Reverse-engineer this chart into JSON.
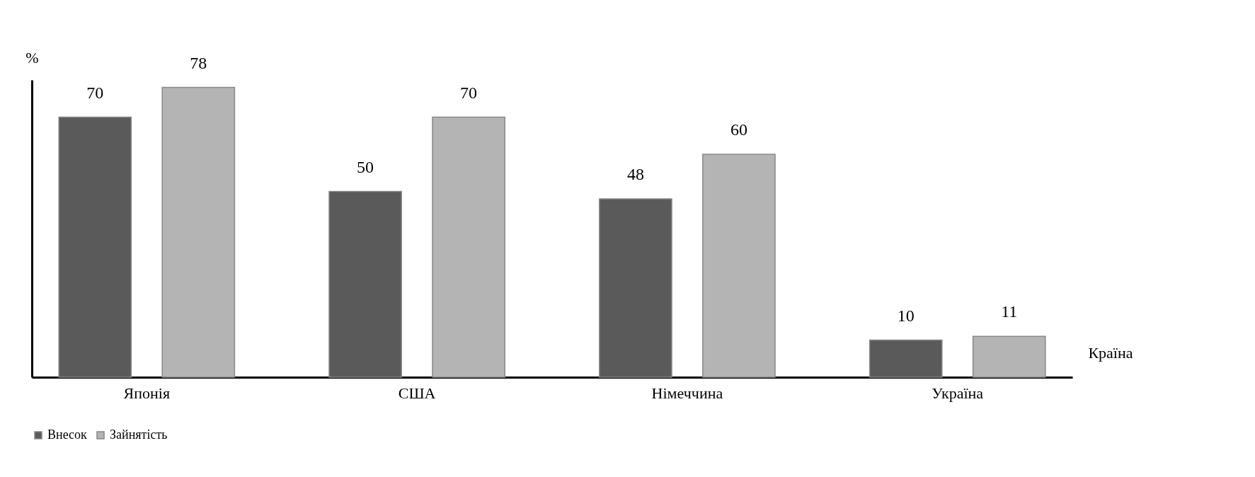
{
  "chart_data": {
    "type": "bar",
    "xlabel": "Країна",
    "ylabel": "%",
    "categories": [
      "Японія",
      "США",
      "Німеччина",
      "Україна"
    ],
    "series": [
      {
        "name": "Внесок",
        "color": "#5a5a5a",
        "values": [
          70,
          50,
          48,
          10
        ]
      },
      {
        "name": "Зайнятість",
        "color": "#b4b4b4",
        "values": [
          78,
          70,
          60,
          11
        ]
      }
    ],
    "data_labels": true,
    "grid": false,
    "legend": "bottom",
    "tick_labels": "x"
  }
}
